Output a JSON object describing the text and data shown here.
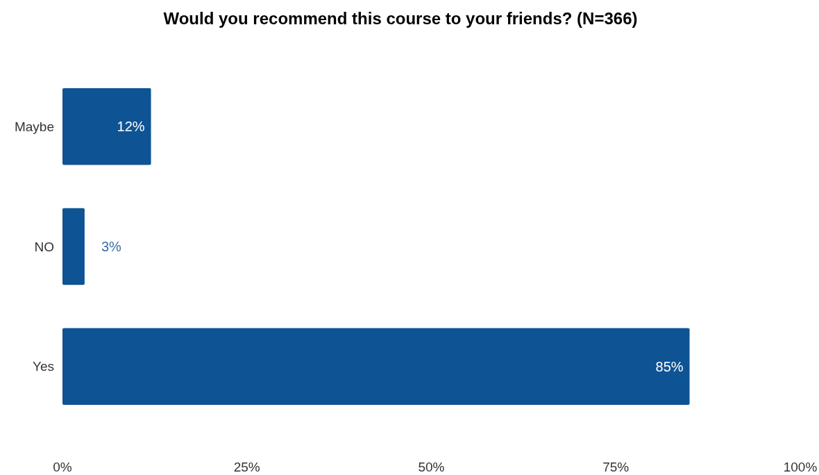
{
  "chart_data": {
    "type": "bar",
    "orientation": "horizontal",
    "title": "Would you recommend this course to your friends? (N=366)",
    "categories": [
      "Maybe",
      "NO",
      "Yes"
    ],
    "values": [
      12,
      3,
      85
    ],
    "value_labels": [
      "12%",
      "3%",
      "85%"
    ],
    "color": "#0e5394",
    "xlim": [
      0,
      100
    ],
    "xticks": [
      {
        "value": 0,
        "label": "0%"
      },
      {
        "value": 25,
        "label": "25%"
      },
      {
        "value": 50,
        "label": "50%"
      },
      {
        "value": 75,
        "label": "75%"
      },
      {
        "value": 100,
        "label": "100%"
      }
    ],
    "grid": false
  }
}
